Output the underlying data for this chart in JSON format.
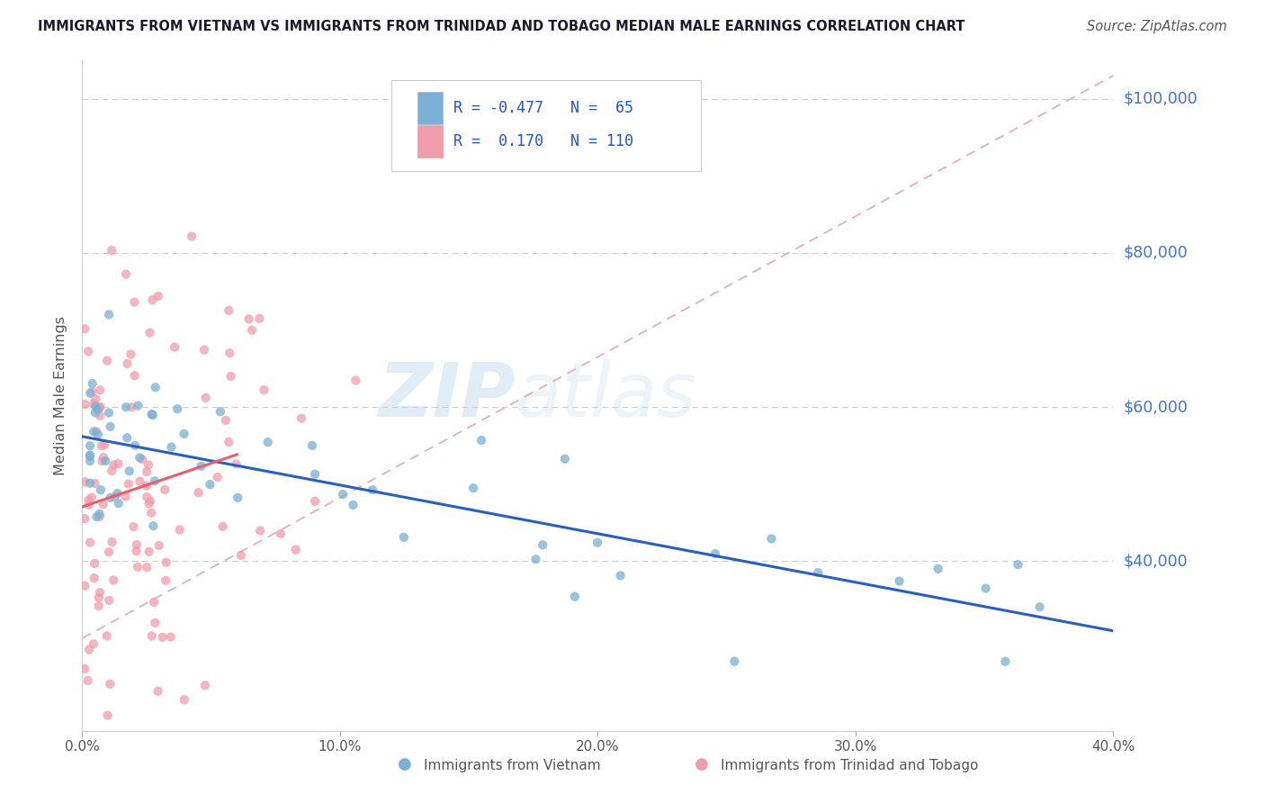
{
  "title": "IMMIGRANTS FROM VIETNAM VS IMMIGRANTS FROM TRINIDAD AND TOBAGO MEDIAN MALE EARNINGS CORRELATION CHART",
  "source": "Source: ZipAtlas.com",
  "ylabel": "Median Male Earnings",
  "vietnam_color": "#7bafd4",
  "tt_color": "#f09caa",
  "vietnam_line_color": "#2b5fbd",
  "tt_line_color": "#e8606e",
  "refline_color": "#e0b0b8",
  "vietnam_R": "-0.477",
  "vietnam_N": "65",
  "tt_R": "0.170",
  "tt_N": "110",
  "legend_label_vietnam": "Immigrants from Vietnam",
  "legend_label_tt": "Immigrants from Trinidad and Tobago",
  "watermark_zip": "ZIP",
  "watermark_atlas": "atlas",
  "right_tick_color": "#4472c4",
  "title_color": "#2c3e50",
  "source_color": "#555555",
  "ytick_values": [
    40000,
    60000,
    80000,
    100000
  ],
  "ytick_labels": [
    "$40,000",
    "$60,000",
    "$80,000",
    "$100,000"
  ],
  "xlim": [
    0,
    40
  ],
  "ylim": [
    18000,
    105000
  ],
  "xtick_values": [
    0,
    10,
    20,
    30,
    40
  ],
  "xtick_labels": [
    "0.0%",
    "10.0%",
    "20.0%",
    "30.0%",
    "40.0%"
  ]
}
